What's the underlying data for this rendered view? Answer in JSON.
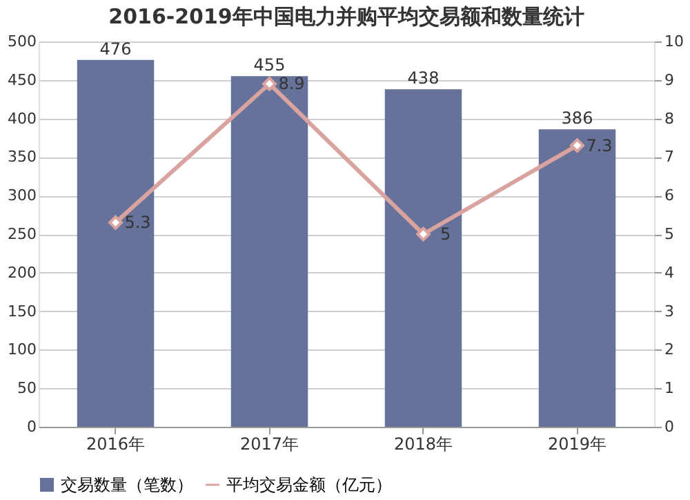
{
  "chart_data": {
    "type": "bar",
    "title": "2016-2019年中国电力并购平均交易额和数量统计",
    "categories": [
      "2016年",
      "2017年",
      "2018年",
      "2019年"
    ],
    "series": [
      {
        "name": "交易数量（笔数）",
        "color": "#67729a",
        "values": [
          476,
          455,
          438,
          386
        ]
      },
      {
        "name": "平均交易金额（亿元）",
        "type": "line",
        "axis": "y2",
        "color": "#d9a3a0",
        "values": [
          5.3,
          8.9,
          5,
          7.3
        ]
      }
    ],
    "ylim": [
      0,
      500
    ],
    "yticks": [
      0,
      50,
      100,
      150,
      200,
      250,
      300,
      350,
      400,
      450,
      500
    ],
    "y2lim": [
      0,
      10
    ],
    "y2ticks": [
      0,
      1,
      2,
      3,
      4,
      5,
      6,
      7,
      8,
      9,
      10
    ],
    "grid": "y",
    "legend": "bottom",
    "marker": "diamond",
    "data_labels": true
  }
}
